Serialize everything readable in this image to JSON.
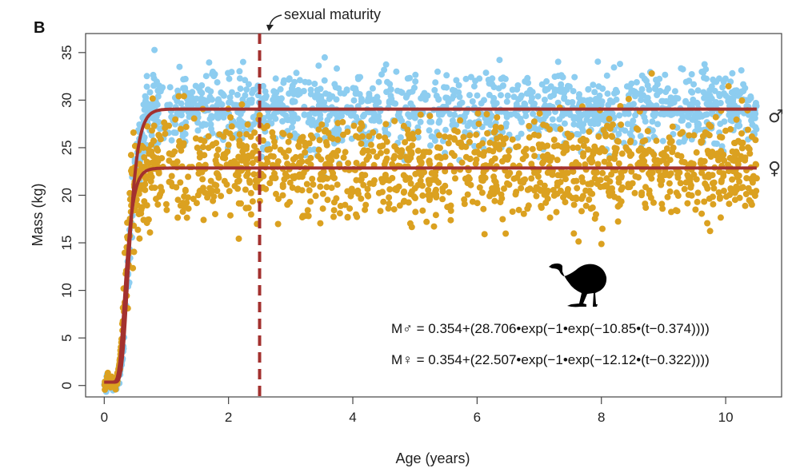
{
  "panel_label": "B",
  "chart_data": {
    "type": "scatter",
    "xlabel": "Age (years)",
    "ylabel": "Mass (kg)",
    "xlim": [
      -0.3,
      10.9
    ],
    "ylim": [
      -1.2,
      37.0
    ],
    "xticks": [
      0,
      2,
      4,
      6,
      8,
      10
    ],
    "yticks": [
      0,
      5,
      10,
      15,
      20,
      25,
      30,
      35
    ],
    "grid": false,
    "x_max_data": 10.5,
    "series": [
      {
        "name": "♂",
        "color": "#8dcdf0",
        "point_count": 1400,
        "model": {
          "a": 0.354,
          "b": 28.706,
          "c": 10.85,
          "t0": 0.374
        },
        "noise_sd": 1.9,
        "equation_text": "M♂ = 0.354+(28.706•exp(−1•exp(−10.85•(t−0.374))))"
      },
      {
        "name": "♀",
        "color": "#dba120",
        "point_count": 1400,
        "model": {
          "a": 0.354,
          "b": 22.507,
          "c": 12.12,
          "t0": 0.322
        },
        "noise_sd": 2.6,
        "equation_text": "M♀ = 0.354+(22.507•exp(−1•exp(−12.12•(t−0.322))))"
      }
    ],
    "fit_line_color": "#a3312f",
    "annotations": {
      "vertical_line": {
        "x": 2.5,
        "label": "sexual maturity",
        "color": "#a3312f",
        "style": "dashed"
      }
    },
    "silhouette": "emu-silhouette-icon"
  }
}
